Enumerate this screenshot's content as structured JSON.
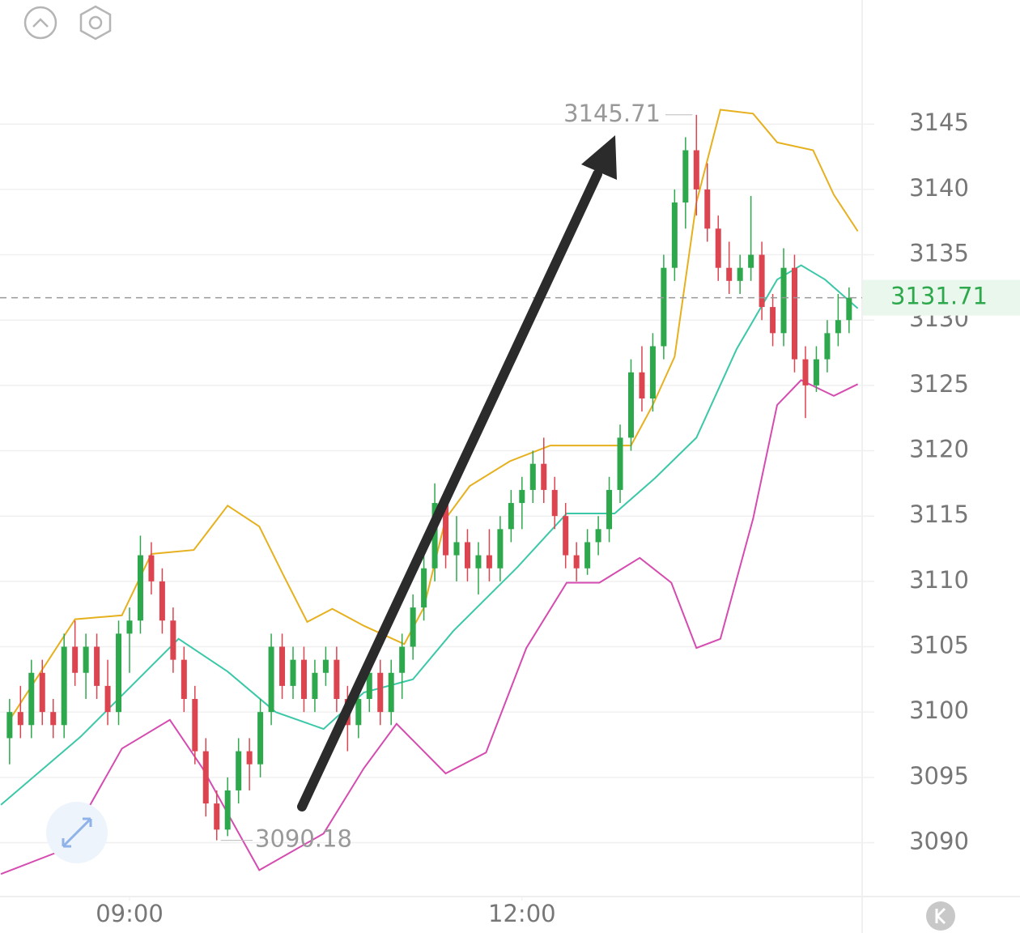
{
  "chart_data": {
    "type": "candlestick",
    "up_color": "#2ea84c",
    "down_color": "#dc4450",
    "ylim": [
      3086,
      3154.5
    ],
    "yticks": [
      3090,
      3095,
      3100,
      3105,
      3110,
      3115,
      3120,
      3125,
      3130,
      3135,
      3140,
      3145
    ],
    "xlim": [
      -0.88,
      78.2
    ],
    "xticks": [
      {
        "value": 11,
        "label": "09:00"
      },
      {
        "value": 47,
        "label": "12:00"
      }
    ],
    "grid": true,
    "ohlc": [
      [
        3098,
        3101,
        3096,
        3100
      ],
      [
        3100,
        3102,
        3098,
        3099
      ],
      [
        3099,
        3104,
        3098,
        3103
      ],
      [
        3103,
        3104,
        3099,
        3100
      ],
      [
        3100,
        3101,
        3098,
        3099
      ],
      [
        3099,
        3106,
        3098,
        3105
      ],
      [
        3105,
        3107,
        3102,
        3103
      ],
      [
        3103,
        3106,
        3101,
        3105
      ],
      [
        3105,
        3106,
        3101,
        3102
      ],
      [
        3102,
        3104,
        3099,
        3100
      ],
      [
        3100,
        3107,
        3099,
        3106
      ],
      [
        3106,
        3108,
        3103,
        3107
      ],
      [
        3107,
        3113.5,
        3106,
        3112
      ],
      [
        3112,
        3113,
        3109,
        3110
      ],
      [
        3110,
        3111,
        3106,
        3107
      ],
      [
        3107,
        3108,
        3103,
        3104
      ],
      [
        3104,
        3105,
        3100,
        3101
      ],
      [
        3101,
        3102,
        3096,
        3097
      ],
      [
        3097,
        3098,
        3092,
        3093
      ],
      [
        3093,
        3094,
        3090.18,
        3091
      ],
      [
        3091,
        3095,
        3090.5,
        3094
      ],
      [
        3094,
        3098,
        3093,
        3097
      ],
      [
        3097,
        3098,
        3094,
        3096
      ],
      [
        3096,
        3101,
        3095,
        3100
      ],
      [
        3100,
        3106,
        3099,
        3105
      ],
      [
        3105,
        3106,
        3101,
        3102
      ],
      [
        3102,
        3105,
        3101,
        3104
      ],
      [
        3104,
        3105,
        3100,
        3101
      ],
      [
        3101,
        3104,
        3100,
        3103
      ],
      [
        3103,
        3105,
        3102,
        3104
      ],
      [
        3104,
        3105,
        3100,
        3101
      ],
      [
        3101,
        3102,
        3097,
        3099
      ],
      [
        3099,
        3102,
        3098,
        3101
      ],
      [
        3101,
        3104,
        3100,
        3103
      ],
      [
        3103,
        3104,
        3099,
        3100
      ],
      [
        3100,
        3104,
        3099,
        3103
      ],
      [
        3103,
        3106,
        3101,
        3105
      ],
      [
        3105,
        3109,
        3104,
        3108
      ],
      [
        3108,
        3112,
        3107,
        3111
      ],
      [
        3111,
        3117.5,
        3110,
        3116
      ],
      [
        3116,
        3117,
        3111,
        3112
      ],
      [
        3112,
        3115,
        3110,
        3113
      ],
      [
        3113,
        3114,
        3110,
        3111
      ],
      [
        3111,
        3113,
        3109,
        3112
      ],
      [
        3112,
        3114,
        3110,
        3111
      ],
      [
        3111,
        3115,
        3110,
        3114
      ],
      [
        3114,
        3117,
        3113,
        3116
      ],
      [
        3116,
        3118,
        3114,
        3117
      ],
      [
        3117,
        3120,
        3116,
        3119
      ],
      [
        3119,
        3121,
        3116,
        3117
      ],
      [
        3117,
        3118,
        3114,
        3115
      ],
      [
        3115,
        3116,
        3111,
        3112
      ],
      [
        3112,
        3113,
        3110,
        3111
      ],
      [
        3111,
        3114,
        3110.5,
        3113
      ],
      [
        3113,
        3115,
        3112,
        3114
      ],
      [
        3114,
        3118,
        3113,
        3117
      ],
      [
        3117,
        3122,
        3116,
        3121
      ],
      [
        3121,
        3127,
        3120,
        3126
      ],
      [
        3126,
        3128,
        3123,
        3124
      ],
      [
        3124,
        3129,
        3123,
        3128
      ],
      [
        3128,
        3135,
        3127,
        3134
      ],
      [
        3134,
        3140,
        3133,
        3139
      ],
      [
        3139,
        3144,
        3137,
        3143
      ],
      [
        3143,
        3145.71,
        3138,
        3140
      ],
      [
        3140,
        3142,
        3136,
        3137
      ],
      [
        3137,
        3138,
        3133,
        3134
      ],
      [
        3134,
        3136,
        3132,
        3133
      ],
      [
        3133,
        3135,
        3132,
        3134
      ],
      [
        3134,
        3139.5,
        3133,
        3135
      ],
      [
        3135,
        3136,
        3130,
        3131
      ],
      [
        3131,
        3132,
        3128,
        3129
      ],
      [
        3129,
        3135.5,
        3128,
        3134
      ],
      [
        3134,
        3135,
        3126,
        3127
      ],
      [
        3127,
        3128,
        3122.5,
        3125
      ],
      [
        3125,
        3128,
        3124.5,
        3127
      ],
      [
        3127,
        3130,
        3126,
        3129
      ],
      [
        3129,
        3132,
        3128,
        3130
      ],
      [
        3130,
        3132.5,
        3129,
        3131.71
      ]
    ],
    "lines": [
      {
        "color": "#e6b01e",
        "x": [
          0,
          6,
          10.3,
          13,
          16.9,
          20,
          22.9,
          25.1,
          27.3,
          29.6,
          32.5,
          36.2,
          38,
          40,
          42.2,
          45.9,
          49.6,
          57,
          59,
          61,
          63,
          65.2,
          68.2,
          70.4,
          73.7,
          75.6,
          77.8
        ],
        "values": [
          3099.4,
          3107.1,
          3107.4,
          3112.1,
          3112.4,
          3115.8,
          3114.2,
          3110.5,
          3106.9,
          3107.9,
          3106.6,
          3105.2,
          3108,
          3114.8,
          3117.3,
          3119.2,
          3120.4,
          3120.4,
          3123.5,
          3127.2,
          3139,
          3146.1,
          3145.8,
          3143.6,
          3143,
          3139.6,
          3136.8
        ]
      },
      {
        "color": "#3cc8a8",
        "x": [
          -0.8,
          6.5,
          15.5,
          20,
          24.4,
          28.8,
          32.5,
          37,
          40.7,
          46.6,
          51.1,
          55.5,
          59.2,
          63,
          66.7,
          70.4,
          72.6,
          74.8,
          77.8
        ],
        "values": [
          3092.9,
          3098.1,
          3105.6,
          3103.1,
          3100,
          3098.7,
          3101.5,
          3102.5,
          3106.2,
          3111.1,
          3115.2,
          3115.2,
          3117.9,
          3121,
          3127.8,
          3133.1,
          3134.2,
          3133.1,
          3130.9
        ]
      },
      {
        "color": "#d54bb0",
        "x": [
          -0.8,
          5.1,
          10.3,
          14.7,
          17.7,
          22.9,
          28.8,
          32.5,
          35.5,
          40,
          43.7,
          47.4,
          51.1,
          54.1,
          57.8,
          60.7,
          63,
          65.2,
          68.2,
          70.4,
          72.6,
          75.6,
          77.8
        ],
        "values": [
          3087.6,
          3089.5,
          3097.2,
          3099.4,
          3095.7,
          3087.9,
          3090.7,
          3095.7,
          3099.1,
          3095.3,
          3096.9,
          3104.9,
          3109.9,
          3109.9,
          3111.8,
          3109.9,
          3104.9,
          3105.6,
          3114.8,
          3123.5,
          3125.4,
          3124.2,
          3125.1
        ]
      }
    ],
    "high_label": 3145.71,
    "low_label": 3090.18,
    "last_price": 3131.71,
    "last_price_color": "#2ea84c"
  }
}
